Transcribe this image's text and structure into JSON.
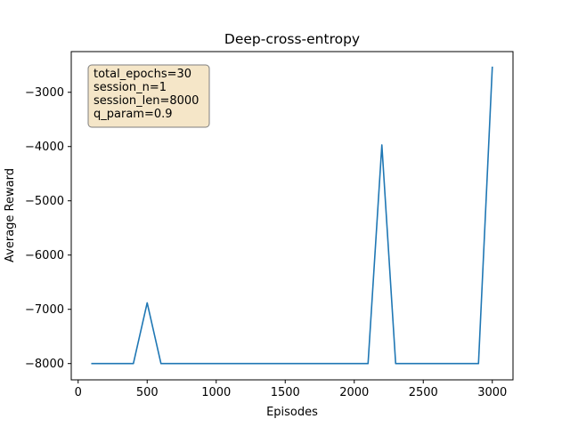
{
  "chart_data": {
    "type": "line",
    "title": "Deep-cross-entropy",
    "xlabel": "Episodes",
    "ylabel": "Average Reward",
    "xlim": [
      -50,
      3150
    ],
    "ylim": [
      -8300,
      -2250
    ],
    "grid": false,
    "x_ticks": [
      0,
      500,
      1000,
      1500,
      2000,
      2500,
      3000
    ],
    "x_tick_labels": [
      "0",
      "500",
      "1000",
      "1500",
      "2000",
      "2500",
      "3000"
    ],
    "y_ticks": [
      -8000,
      -7000,
      -6000,
      -5000,
      -4000,
      -3000
    ],
    "y_tick_labels": [
      "−8000",
      "−7000",
      "−6000",
      "−5000",
      "−4000",
      "−3000"
    ],
    "series": [
      {
        "color": "#1f77b4",
        "x": [
          100,
          200,
          300,
          400,
          500,
          600,
          700,
          800,
          900,
          1000,
          1100,
          1200,
          1300,
          1400,
          1500,
          1600,
          1700,
          1800,
          1900,
          2000,
          2100,
          2200,
          2300,
          2400,
          2500,
          2600,
          2700,
          2800,
          2900,
          3000
        ],
        "y": [
          -8000,
          -8000,
          -8000,
          -8000,
          -6880,
          -8000,
          -8000,
          -8000,
          -8000,
          -8000,
          -8000,
          -8000,
          -8000,
          -8000,
          -8000,
          -8000,
          -8000,
          -8000,
          -8000,
          -8000,
          -8000,
          -3970,
          -8000,
          -8000,
          -8000,
          -8000,
          -8000,
          -8000,
          -8000,
          -2540
        ]
      }
    ],
    "annotation": {
      "lines": [
        "total_epochs=30",
        "session_n=1",
        "session_len=8000",
        "q_param=0.9"
      ],
      "placement": "top-left",
      "facecolor": "#f5e6c8",
      "edgecolor": "#7f7f7f"
    }
  }
}
